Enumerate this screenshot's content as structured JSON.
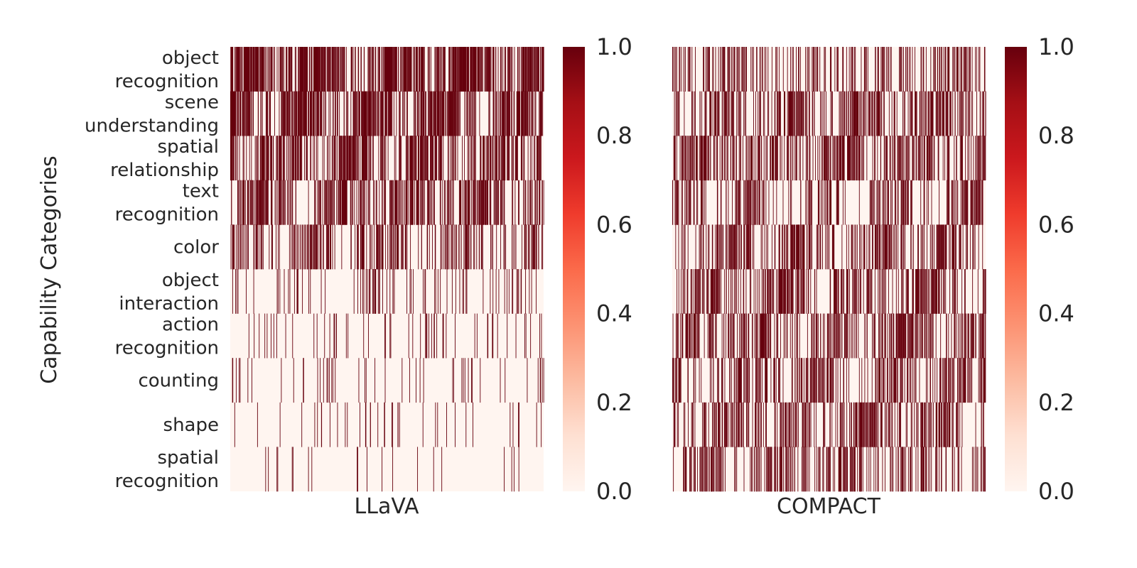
{
  "chart_data": {
    "type": "heatmap",
    "ylabel": "Capability Categories",
    "categories": [
      "object\nrecognition",
      "scene\nunderstanding",
      "spatial\nrelationship",
      "text\nrecognition",
      "color",
      "object\ninteraction",
      "action\nrecognition",
      "counting",
      "shape",
      "spatial\nrecognition"
    ],
    "colormap": "Reds",
    "colorbar": {
      "ticks": [
        "0.0",
        "0.2",
        "0.4",
        "0.6",
        "0.8",
        "1.0"
      ],
      "range": [
        0,
        1
      ]
    },
    "value_range": [
      0,
      1
    ],
    "panels": [
      {
        "xlabel": "LLaVA",
        "row_density": [
          0.45,
          0.4,
          0.36,
          0.28,
          0.2,
          0.08,
          0.06,
          0.03,
          0.03,
          0.02
        ],
        "cell_values": "binary (0 = correct, 1 = error), one column per sample"
      },
      {
        "xlabel": "COMPACT",
        "row_density": [
          0.2,
          0.25,
          0.28,
          0.2,
          0.22,
          0.25,
          0.25,
          0.24,
          0.22,
          0.22
        ],
        "cell_values": "binary (0 = correct, 1 = error), one column per sample"
      }
    ],
    "colors": {
      "low": "#fff5f0",
      "high": "#67000d"
    }
  }
}
